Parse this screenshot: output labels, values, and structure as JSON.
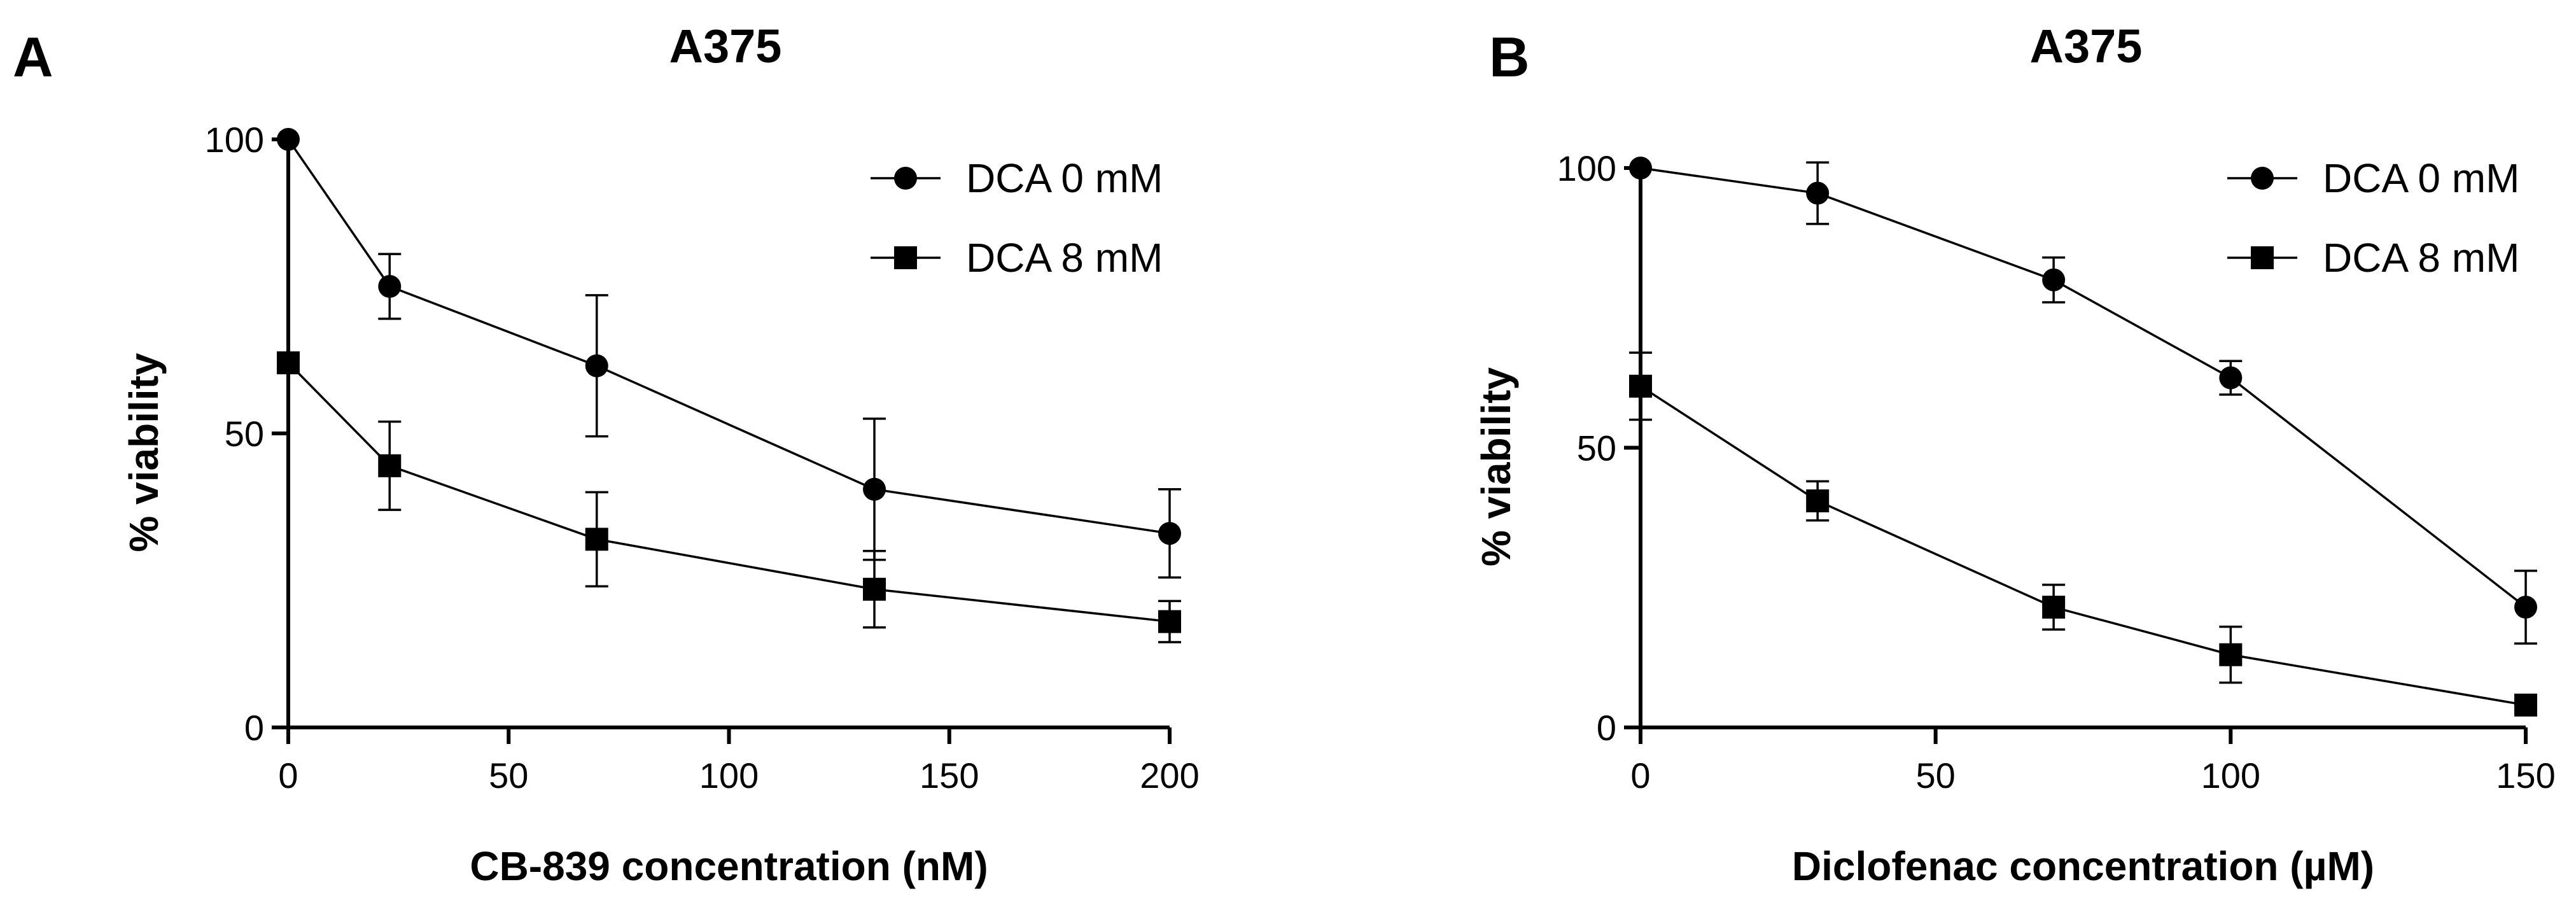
{
  "chart_data": [
    {
      "type": "line",
      "panel_label": "A",
      "title": "A375",
      "xlabel": "CB-839 concentration (nM)",
      "ylabel": "% viability",
      "xlim": [
        0,
        200
      ],
      "ylim": [
        0,
        100
      ],
      "xticks": [
        0,
        50,
        100,
        150,
        200
      ],
      "yticks": [
        0,
        50,
        100
      ],
      "legend_position": "top-right",
      "series": [
        {
          "name": "DCA 0 mM",
          "marker": "circle",
          "x": [
            0,
            23,
            70,
            133,
            200
          ],
          "y": [
            100,
            75,
            61.5,
            40.5,
            33
          ],
          "err": [
            0,
            5.5,
            12,
            12,
            7.5
          ]
        },
        {
          "name": "DCA 8 mM",
          "marker": "square",
          "x": [
            0,
            23,
            70,
            133,
            200
          ],
          "y": [
            62,
            44.5,
            32,
            23.5,
            18
          ],
          "err": [
            1.5,
            7.5,
            8,
            6.5,
            3.5
          ]
        }
      ]
    },
    {
      "type": "line",
      "panel_label": "B",
      "title": "A375",
      "xlabel": "Diclofenac concentration (µM)",
      "ylabel": "% viability",
      "xlim": [
        0,
        150
      ],
      "ylim": [
        0,
        100
      ],
      "xticks": [
        0,
        50,
        100,
        150
      ],
      "yticks": [
        0,
        50,
        100
      ],
      "legend_position": "top-right",
      "series": [
        {
          "name": "DCA 0 mM",
          "marker": "circle",
          "x": [
            0,
            30,
            70,
            100,
            150
          ],
          "y": [
            100,
            95.5,
            80,
            62.5,
            21.5
          ],
          "err": [
            0,
            5.5,
            4,
            3,
            6.5
          ]
        },
        {
          "name": "DCA 8 mM",
          "marker": "square",
          "x": [
            0,
            30,
            70,
            100,
            150
          ],
          "y": [
            61,
            40.5,
            21.5,
            13,
            4
          ],
          "err": [
            6,
            3.5,
            4,
            5,
            1
          ]
        }
      ]
    }
  ]
}
